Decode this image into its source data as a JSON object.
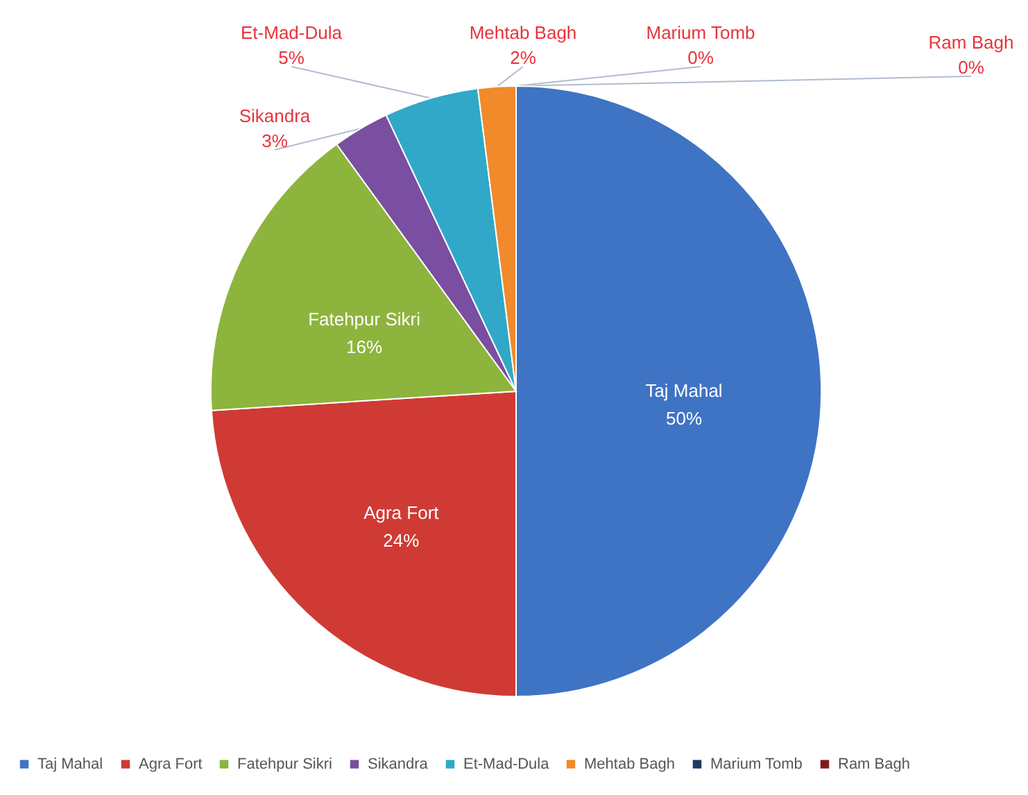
{
  "chart_data": {
    "type": "pie",
    "categories": [
      "Taj Mahal",
      "Agra Fort",
      "Fatehpur Sikri",
      "Sikandra",
      "Et-Mad-Dula",
      "Mehtab Bagh",
      "Marium Tomb",
      "Ram Bagh"
    ],
    "values": [
      50,
      24,
      16,
      3,
      5,
      2,
      0,
      0
    ],
    "value_labels": [
      "50%",
      "24%",
      "16%",
      "3%",
      "5%",
      "2%",
      "0%",
      "0%"
    ],
    "colors": [
      "#3f73c4",
      "#d03a35",
      "#8db43c",
      "#7a4ea0",
      "#31a8c8",
      "#f08a2a",
      "#1f3864",
      "#7f1a1a"
    ],
    "legend": "bottom"
  }
}
